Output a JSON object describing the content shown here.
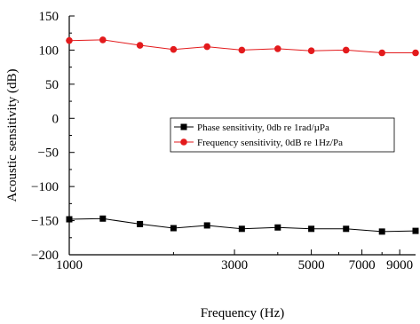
{
  "chart_data": {
    "type": "line",
    "xlabel": "Frequency (Hz)",
    "ylabel": "Acoustic sensitivity (dB)",
    "xscale": "log",
    "xlim": [
      1000,
      10000
    ],
    "ylim": [
      -200,
      150
    ],
    "x_ticks": [
      1000,
      3000,
      5000,
      7000,
      9000
    ],
    "x_tick_labels": [
      "1000",
      "3000",
      "5000",
      "7000",
      "9000"
    ],
    "y_ticks": [
      150,
      100,
      50,
      0,
      -50,
      -100,
      -150,
      -200
    ],
    "y_tick_labels": [
      "150",
      "100",
      "50",
      "0",
      "−50",
      "−100",
      "−150",
      "−200"
    ],
    "grid": false,
    "legend_position": "right",
    "series": [
      {
        "name": "Phase sensitivity, 0db re 1rad/µPa",
        "color": "#000000",
        "marker": "square",
        "x": [
          1000,
          1250,
          1600,
          2000,
          2500,
          3150,
          4000,
          5000,
          6300,
          8000,
          10000
        ],
        "y": [
          -148,
          -147,
          -155,
          -161,
          -157,
          -162,
          -160,
          -162,
          -162,
          -166,
          -165
        ]
      },
      {
        "name": "Frequency sensitivity, 0dB re 1Hz/Pa",
        "color": "#e31a1c",
        "marker": "circle",
        "x": [
          1000,
          1250,
          1600,
          2000,
          2500,
          3150,
          4000,
          5000,
          6300,
          8000,
          10000
        ],
        "y": [
          114,
          115,
          107,
          101,
          105,
          100,
          102,
          99,
          100,
          96,
          96
        ]
      }
    ]
  }
}
